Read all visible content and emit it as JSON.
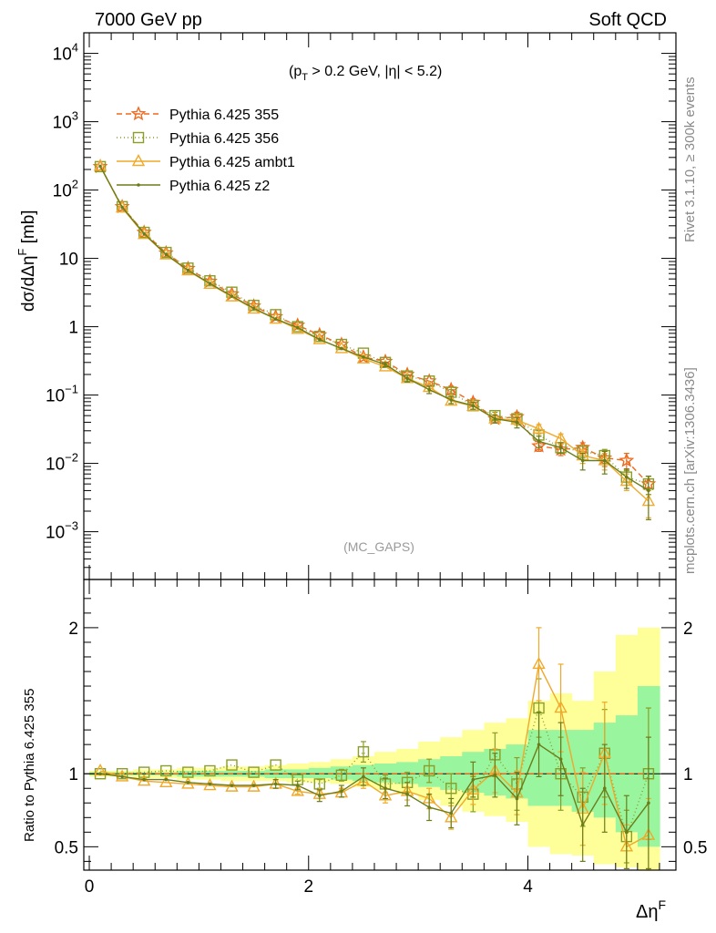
{
  "header": {
    "left": "7000 GeV pp",
    "right": "Soft QCD"
  },
  "side_labels": {
    "rivet": "Rivet 3.1.10, ≥ 300k events",
    "mcplots": "mcplots.cern.ch [arXiv:1306.3436]"
  },
  "cut_label": {
    "open": "(p",
    "sub": "T",
    "rest": " > 0.2 GeV, |η| < 5.2)"
  },
  "analysis_label": "(MC_GAPS)",
  "top_ylabel": {
    "main": "dσ/dΔη",
    "sup": "F",
    "unit": " [mb]"
  },
  "bottom_ylabel": "Ratio to Pythia 6.425 355",
  "xlabel": {
    "main": "Δη",
    "sup": "F"
  },
  "chart_data": [
    {
      "type": "line",
      "panel": "main",
      "yscale": "log",
      "xlim": [
        -0.05,
        5.35
      ],
      "ylim": [
        0.0002,
        20000
      ],
      "x_ticks": [
        0,
        2,
        4
      ],
      "y_ticks": [
        {
          "v": 0.001,
          "base": "10",
          "exp": "−3"
        },
        {
          "v": 0.01,
          "base": "10",
          "exp": "−2"
        },
        {
          "v": 0.1,
          "base": "10",
          "exp": "−1"
        },
        {
          "v": 1,
          "base": "1",
          "exp": ""
        },
        {
          "v": 10,
          "base": "10",
          "exp": ""
        },
        {
          "v": 100,
          "base": "10",
          "exp": "2"
        },
        {
          "v": 1000,
          "base": "10",
          "exp": "3"
        },
        {
          "v": 10000,
          "base": "10",
          "exp": "4"
        }
      ],
      "x": [
        0.1,
        0.3,
        0.5,
        0.7,
        0.9,
        1.1,
        1.3,
        1.5,
        1.7,
        1.9,
        2.1,
        2.3,
        2.5,
        2.7,
        2.9,
        3.1,
        3.3,
        3.5,
        3.7,
        3.9,
        4.1,
        4.3,
        4.5,
        4.7,
        4.9,
        5.1
      ],
      "legend_placement": "top-left",
      "series": [
        {
          "name": "Pythia 6.425 355",
          "color": "#ee6a1e",
          "dash": "6,4",
          "marker": "star",
          "values": [
            220,
            57,
            24,
            12,
            7.1,
            4.6,
            3.0,
            2.0,
            1.4,
            1.05,
            0.76,
            0.55,
            0.36,
            0.31,
            0.2,
            0.16,
            0.12,
            0.078,
            0.045,
            0.048,
            0.018,
            0.016,
            0.017,
            0.012,
            0.011,
            0.005
          ],
          "errors": [
            0,
            0,
            0,
            0,
            0,
            0,
            0,
            0,
            0,
            0,
            0,
            0,
            0,
            0,
            0,
            0,
            0.015,
            0.01,
            0.006,
            0.008,
            0.003,
            0.003,
            0.003,
            0.003,
            0.003,
            0.0015
          ]
        },
        {
          "name": "Pythia 6.425 356",
          "color": "#8a9e28",
          "dash": "1,3",
          "marker": "square",
          "values": [
            220,
            57,
            24,
            12.2,
            7.2,
            4.7,
            3.2,
            2.05,
            1.5,
            1.0,
            0.72,
            0.55,
            0.41,
            0.3,
            0.19,
            0.16,
            0.11,
            0.07,
            0.05,
            0.045,
            0.026,
            0.017,
            0.015,
            0.013,
            0.0063,
            0.005
          ],
          "errors": [
            0,
            0,
            0,
            0,
            0,
            0,
            0,
            0,
            0,
            0,
            0,
            0,
            0,
            0,
            0,
            0,
            0.01,
            0.008,
            0.006,
            0.007,
            0.004,
            0.003,
            0.003,
            0.003,
            0.0015,
            0.0015
          ]
        },
        {
          "name": "Pythia 6.425 ambt1",
          "color": "#f0a92a",
          "dash": "",
          "marker": "triangle",
          "values": [
            225,
            55,
            22.5,
            11.3,
            6.6,
            4.2,
            2.75,
            1.82,
            1.3,
            0.92,
            0.65,
            0.48,
            0.34,
            0.26,
            0.175,
            0.13,
            0.082,
            0.069,
            0.045,
            0.043,
            0.032,
            0.023,
            0.013,
            0.011,
            0.0055,
            0.0028
          ],
          "errors": [
            0,
            0,
            0,
            0,
            0,
            0,
            0,
            0,
            0,
            0,
            0,
            0,
            0,
            0,
            0,
            0,
            0.01,
            0.008,
            0.006,
            0.007,
            0.005,
            0.004,
            0.003,
            0.003,
            0.0015,
            0.0012
          ]
        },
        {
          "name": "Pythia 6.425 z2",
          "color": "#6b7d1a",
          "dash": "",
          "marker": "dot",
          "values": [
            223,
            56,
            23,
            11.4,
            6.7,
            4.3,
            2.8,
            1.86,
            1.3,
            0.97,
            0.65,
            0.48,
            0.36,
            0.28,
            0.175,
            0.12,
            0.085,
            0.07,
            0.045,
            0.04,
            0.021,
            0.017,
            0.011,
            0.011,
            0.0063,
            0.004
          ],
          "errors": [
            0,
            0,
            0,
            0,
            0,
            0,
            0,
            0,
            0,
            0,
            0,
            0,
            0,
            0.02,
            0.02,
            0.015,
            0.01,
            0.008,
            0.006,
            0.007,
            0.004,
            0.003,
            0.003,
            0.004,
            0.002,
            0.0025
          ]
        }
      ]
    },
    {
      "type": "line",
      "panel": "ratio",
      "xlim": [
        -0.05,
        5.35
      ],
      "ylim": [
        0.34,
        2.33
      ],
      "x_ticks": [
        0,
        2,
        4
      ],
      "y_ticks": [
        0.5,
        1,
        2
      ],
      "reference_line": 1,
      "x": [
        0.1,
        0.3,
        0.5,
        0.7,
        0.9,
        1.1,
        1.3,
        1.5,
        1.7,
        1.9,
        2.1,
        2.3,
        2.5,
        2.7,
        2.9,
        3.1,
        3.3,
        3.5,
        3.7,
        3.9,
        4.1,
        4.3,
        4.5,
        4.7,
        4.9,
        5.1
      ],
      "bands": [
        {
          "color": "#ffff99",
          "lower": [
            0.98,
            0.98,
            0.97,
            0.97,
            0.96,
            0.96,
            0.95,
            0.95,
            0.95,
            0.94,
            0.94,
            0.93,
            0.91,
            0.89,
            0.86,
            0.82,
            0.78,
            0.74,
            0.71,
            0.67,
            0.5,
            0.45,
            0.44,
            0.38,
            0.36,
            0.34
          ],
          "upper": [
            1.02,
            1.02,
            1.03,
            1.03,
            1.04,
            1.04,
            1.05,
            1.05,
            1.06,
            1.07,
            1.08,
            1.1,
            1.12,
            1.15,
            1.17,
            1.22,
            1.25,
            1.3,
            1.35,
            1.38,
            1.5,
            1.55,
            1.5,
            1.7,
            1.95,
            2.0
          ]
        },
        {
          "color": "#99f59e",
          "lower": [
            0.99,
            0.99,
            0.99,
            0.99,
            0.98,
            0.98,
            0.98,
            0.98,
            0.97,
            0.97,
            0.97,
            0.96,
            0.95,
            0.94,
            0.93,
            0.91,
            0.89,
            0.87,
            0.85,
            0.83,
            0.78,
            0.78,
            0.74,
            0.7,
            0.6,
            0.5
          ],
          "upper": [
            1.01,
            1.01,
            1.01,
            1.01,
            1.02,
            1.02,
            1.02,
            1.02,
            1.03,
            1.03,
            1.04,
            1.05,
            1.06,
            1.07,
            1.08,
            1.1,
            1.12,
            1.15,
            1.17,
            1.2,
            1.3,
            1.3,
            1.3,
            1.35,
            1.4,
            1.6
          ]
        }
      ],
      "series": [
        {
          "name": "Pythia 6.425 355",
          "color": "#ee6a1e",
          "dash": "6,4",
          "marker": "none",
          "values": [
            1,
            1,
            1,
            1,
            1,
            1,
            1,
            1,
            1,
            1,
            1,
            1,
            1,
            1,
            1,
            1,
            1,
            1,
            1,
            1,
            1,
            1,
            1,
            1,
            1,
            1
          ],
          "errors": [
            0,
            0,
            0,
            0,
            0,
            0,
            0,
            0,
            0,
            0,
            0,
            0,
            0,
            0,
            0,
            0,
            0,
            0,
            0,
            0,
            0,
            0,
            0,
            0,
            0,
            0
          ]
        },
        {
          "name": "Pythia 6.425 356",
          "color": "#8a9e28",
          "dash": "1,3",
          "marker": "square",
          "values": [
            1.0,
            1.0,
            1.01,
            1.02,
            1.01,
            1.02,
            1.06,
            1.01,
            1.06,
            0.96,
            0.93,
            0.99,
            1.15,
            0.93,
            0.94,
            1.02,
            0.9,
            0.86,
            1.13,
            0.93,
            1.45,
            1.0,
            0.84,
            1.14,
            0.57,
            1.0
          ],
          "errors": [
            0,
            0,
            0,
            0,
            0,
            0,
            0,
            0,
            0,
            0,
            0.03,
            0.04,
            0.07,
            0.06,
            0.07,
            0.08,
            0.1,
            0.12,
            0.15,
            0.18,
            0.2,
            0.25,
            0.2,
            0.3,
            0.18,
            0.45
          ]
        },
        {
          "name": "Pythia 6.425 ambt1",
          "color": "#f0a92a",
          "dash": "",
          "marker": "triangle",
          "values": [
            1.02,
            0.98,
            0.95,
            0.94,
            0.93,
            0.92,
            0.91,
            0.91,
            0.93,
            0.88,
            0.86,
            0.87,
            0.95,
            0.85,
            0.88,
            0.83,
            0.7,
            0.89,
            1.02,
            0.87,
            1.75,
            1.45,
            0.76,
            1.14,
            0.5,
            0.58
          ],
          "errors": [
            0,
            0,
            0,
            0,
            0,
            0,
            0,
            0,
            0,
            0.02,
            0.03,
            0.03,
            0.05,
            0.05,
            0.06,
            0.07,
            0.08,
            0.1,
            0.15,
            0.15,
            0.25,
            0.3,
            0.25,
            0.35,
            0.15,
            0.25
          ]
        },
        {
          "name": "Pythia 6.425 z2",
          "color": "#6b7d1a",
          "dash": "",
          "marker": "dot",
          "values": [
            1.0,
            0.98,
            0.96,
            0.96,
            0.94,
            0.93,
            0.92,
            0.92,
            0.93,
            0.92,
            0.85,
            0.88,
            0.98,
            0.9,
            0.86,
            0.77,
            0.73,
            0.96,
            0.99,
            0.83,
            1.2,
            1.1,
            0.65,
            0.9,
            0.6,
            0.8
          ],
          "errors": [
            0,
            0,
            0,
            0,
            0,
            0,
            0,
            0,
            0.03,
            0.03,
            0.04,
            0.04,
            0.06,
            0.07,
            0.08,
            0.09,
            0.1,
            0.12,
            0.15,
            0.18,
            0.22,
            0.25,
            0.25,
            0.3,
            0.25,
            0.45
          ]
        }
      ]
    }
  ]
}
